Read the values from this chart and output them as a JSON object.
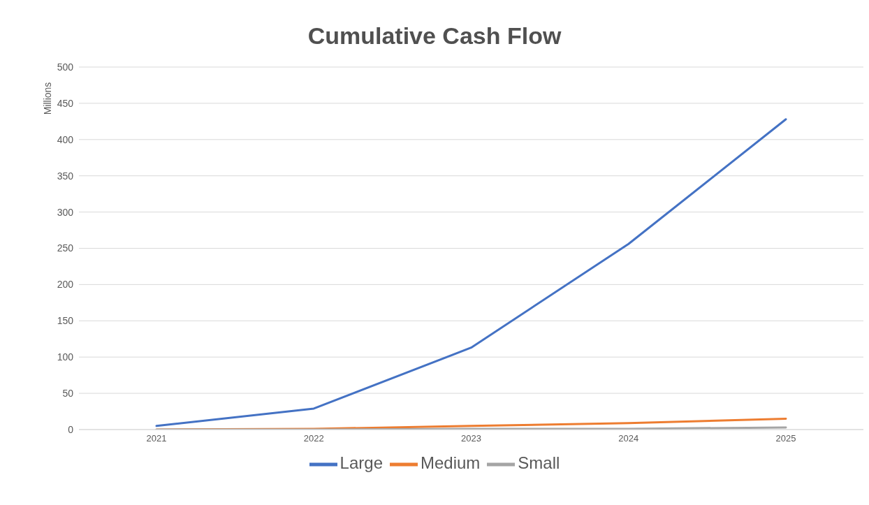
{
  "chart_data": {
    "type": "line",
    "title": "Cumulative Cash Flow",
    "ylabel": "Millions",
    "categories": [
      "2021",
      "2022",
      "2023",
      "2024",
      "2025"
    ],
    "series": [
      {
        "name": "Large",
        "color": "#4472c4",
        "values": [
          5,
          29,
          113,
          256,
          428
        ]
      },
      {
        "name": "Medium",
        "color": "#ed7d31",
        "values": [
          0,
          1,
          5,
          9,
          15
        ]
      },
      {
        "name": "Small",
        "color": "#a5a5a5",
        "values": [
          0,
          0,
          1,
          1,
          3
        ]
      }
    ],
    "ylim": [
      0,
      500
    ],
    "yticks": [
      0,
      50,
      100,
      150,
      200,
      250,
      300,
      350,
      400,
      450,
      500
    ],
    "grid": "y",
    "legend": "bottom",
    "marker": "none",
    "line_style": "solid"
  }
}
